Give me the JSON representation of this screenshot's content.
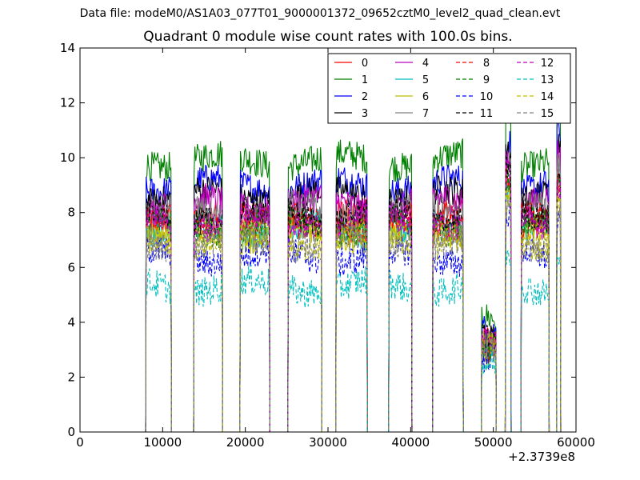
{
  "suptitle": "Data file: modeM0/AS1A03_077T01_9000001372_09652cztM0_level2_quad_clean.evt",
  "chart_data": {
    "type": "line",
    "title": "Quadrant 0 module wise count rates with 100.0s bins.",
    "xlabel": "",
    "ylabel": "",
    "x_offset_label": "+2.3739e8",
    "xlim": [
      0,
      60000
    ],
    "ylim": [
      0,
      14
    ],
    "x_ticks": [
      0,
      10000,
      20000,
      30000,
      40000,
      50000,
      60000
    ],
    "y_ticks": [
      0,
      2,
      4,
      6,
      8,
      10,
      12,
      14
    ],
    "grid": false,
    "legend_position": "top-right",
    "legend_columns": 4,
    "segments": [
      [
        8000,
        11000
      ],
      [
        13800,
        17200
      ],
      [
        19400,
        22900
      ],
      [
        25200,
        29200
      ],
      [
        31000,
        34700
      ],
      [
        37400,
        40100
      ],
      [
        42700,
        46300
      ],
      [
        48600,
        50300
      ],
      [
        51500,
        52100
      ],
      [
        53400,
        56700
      ],
      [
        57700,
        58100
      ]
    ],
    "series": [
      {
        "name": "0",
        "color": "#ff0000",
        "dash": "solid",
        "level": 7.8
      },
      {
        "name": "1",
        "color": "#008000",
        "dash": "solid",
        "level": 9.9
      },
      {
        "name": "2",
        "color": "#0000ff",
        "dash": "solid",
        "level": 9.0
      },
      {
        "name": "3",
        "color": "#000000",
        "dash": "solid",
        "level": 8.6
      },
      {
        "name": "4",
        "color": "#bf00bf",
        "dash": "solid",
        "level": 8.3
      },
      {
        "name": "5",
        "color": "#00bfbf",
        "dash": "solid",
        "level": 7.4
      },
      {
        "name": "6",
        "color": "#bfbf00",
        "dash": "solid",
        "level": 7.2
      },
      {
        "name": "7",
        "color": "#808080",
        "dash": "solid",
        "level": 8.0
      },
      {
        "name": "8",
        "color": "#ff0000",
        "dash": "dashed",
        "level": 7.6
      },
      {
        "name": "9",
        "color": "#008000",
        "dash": "dashed",
        "level": 7.5
      },
      {
        "name": "10",
        "color": "#0000ff",
        "dash": "dashed",
        "level": 6.4
      },
      {
        "name": "11",
        "color": "#000000",
        "dash": "dashed",
        "level": 7.9
      },
      {
        "name": "12",
        "color": "#bf00bf",
        "dash": "dashed",
        "level": 7.7
      },
      {
        "name": "13",
        "color": "#00bfbf",
        "dash": "dashed",
        "level": 5.3
      },
      {
        "name": "14",
        "color": "#bfbf00",
        "dash": "dashed",
        "level": 7.0
      },
      {
        "name": "15",
        "color": "#808080",
        "dash": "dashed",
        "level": 6.9
      }
    ]
  }
}
